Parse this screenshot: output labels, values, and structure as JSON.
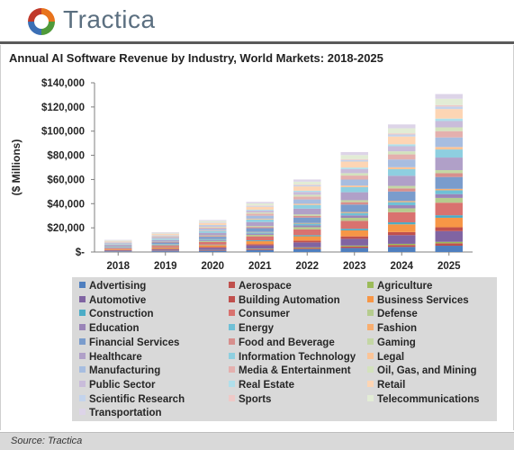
{
  "brand": {
    "name": "Tractica",
    "logo_colors": [
      "#e8731c",
      "#4f9a3a",
      "#3b6fb5",
      "#c0392b"
    ]
  },
  "footer": {
    "source": "Source: Tractica"
  },
  "chart_data": {
    "type": "bar",
    "stacked": true,
    "title": "Annual AI Software Revenue by Industry, World Markets: 2018-2025",
    "xlabel": "",
    "ylabel": "($ Millions)",
    "ylim": [
      0,
      140000
    ],
    "yticks": [
      0,
      20000,
      40000,
      60000,
      80000,
      100000,
      120000,
      140000
    ],
    "ytick_labels": [
      "$-",
      "$20,000",
      "$40,000",
      "$60,000",
      "$80,000",
      "$100,000",
      "$120,000",
      "$140,000"
    ],
    "categories": [
      "2018",
      "2019",
      "2020",
      "2021",
      "2022",
      "2023",
      "2024",
      "2025"
    ],
    "grid": false,
    "legend_position": "bottom",
    "series": [
      {
        "name": "Advertising",
        "color": "#4f7fbf",
        "values": [
          400,
          650,
          1050,
          1650,
          2400,
          3300,
          4200,
          5200
        ]
      },
      {
        "name": "Aerospace",
        "color": "#c0504d",
        "values": [
          150,
          250,
          400,
          650,
          900,
          1250,
          1600,
          2000
        ]
      },
      {
        "name": "Agriculture",
        "color": "#9bbb59",
        "values": [
          100,
          150,
          250,
          400,
          550,
          750,
          950,
          1200
        ]
      },
      {
        "name": "Automotive",
        "color": "#8064a2",
        "values": [
          700,
          1100,
          1800,
          2800,
          4100,
          5600,
          7200,
          8900
        ]
      },
      {
        "name": "Building Automation",
        "color": "#c0504d",
        "values": [
          250,
          400,
          650,
          1000,
          1450,
          2000,
          2550,
          3150
        ]
      },
      {
        "name": "Business Services",
        "color": "#f79646",
        "values": [
          600,
          1000,
          1600,
          2500,
          3600,
          5000,
          6400,
          7900
        ]
      },
      {
        "name": "Construction",
        "color": "#4bacc6",
        "values": [
          150,
          250,
          400,
          650,
          950,
          1300,
          1650,
          2050
        ]
      },
      {
        "name": "Consumer",
        "color": "#d9726f",
        "values": [
          800,
          1300,
          2100,
          3300,
          4800,
          6600,
          8400,
          10400
        ]
      },
      {
        "name": "Defense",
        "color": "#b5cc8e",
        "values": [
          300,
          500,
          800,
          1250,
          1800,
          2500,
          3200,
          3950
        ]
      },
      {
        "name": "Education",
        "color": "#9a84b8",
        "values": [
          250,
          400,
          650,
          1000,
          1450,
          2000,
          2550,
          3150
        ]
      },
      {
        "name": "Energy",
        "color": "#6fc0d6",
        "values": [
          250,
          400,
          650,
          1000,
          1450,
          2000,
          2550,
          3150
        ]
      },
      {
        "name": "Fashion",
        "color": "#f9ae6f",
        "values": [
          100,
          150,
          250,
          400,
          550,
          750,
          950,
          1200
        ]
      },
      {
        "name": "Financial Services",
        "color": "#7a9ccc",
        "values": [
          750,
          1250,
          2000,
          3100,
          4500,
          6200,
          7900,
          9800
        ]
      },
      {
        "name": "Food and Beverage",
        "color": "#d78f8d",
        "values": [
          250,
          400,
          650,
          1000,
          1450,
          2000,
          2550,
          3150
        ]
      },
      {
        "name": "Gaming",
        "color": "#c4d7a5",
        "values": [
          200,
          300,
          500,
          800,
          1150,
          1600,
          2050,
          2550
        ]
      },
      {
        "name": "Healthcare",
        "color": "#b0a0c8",
        "values": [
          800,
          1300,
          2100,
          3300,
          4800,
          6600,
          8400,
          10400
        ]
      },
      {
        "name": "Information Technology",
        "color": "#8ecfe0",
        "values": [
          500,
          850,
          1350,
          2100,
          3050,
          4200,
          5400,
          6700
        ]
      },
      {
        "name": "Legal",
        "color": "#fbc497",
        "values": [
          150,
          250,
          400,
          650,
          950,
          1300,
          1650,
          2050
        ]
      },
      {
        "name": "Manufacturing",
        "color": "#a7bde0",
        "values": [
          600,
          1000,
          1600,
          2500,
          3600,
          5000,
          6400,
          7900
        ]
      },
      {
        "name": "Media & Entertainment",
        "color": "#e4b0ae",
        "values": [
          400,
          650,
          1050,
          1650,
          2400,
          3300,
          4200,
          5200
        ]
      },
      {
        "name": "Oil, Gas, and Mining",
        "color": "#d3e2bd",
        "values": [
          250,
          400,
          650,
          1000,
          1450,
          2000,
          2550,
          3150
        ]
      },
      {
        "name": "Public Sector",
        "color": "#c9bcda",
        "values": [
          400,
          650,
          1050,
          1650,
          2400,
          3300,
          4200,
          5200
        ]
      },
      {
        "name": "Real Estate",
        "color": "#b0dfeb",
        "values": [
          150,
          250,
          400,
          650,
          950,
          1300,
          1650,
          2050
        ]
      },
      {
        "name": "Retail",
        "color": "#fdd5b4",
        "values": [
          600,
          1000,
          1600,
          2500,
          3600,
          5000,
          6400,
          7900
        ]
      },
      {
        "name": "Scientific Research",
        "color": "#c3d3ec",
        "values": [
          150,
          250,
          400,
          650,
          950,
          1300,
          1650,
          2050
        ]
      },
      {
        "name": "Sports",
        "color": "#eec9c7",
        "values": [
          100,
          150,
          250,
          400,
          550,
          750,
          950,
          1200
        ]
      },
      {
        "name": "Telecommunications",
        "color": "#e2ecd5",
        "values": [
          400,
          650,
          1050,
          1650,
          2400,
          3300,
          4200,
          5200
        ]
      },
      {
        "name": "Transportation",
        "color": "#ddd4e8",
        "values": [
          300,
          500,
          800,
          1250,
          1800,
          2500,
          3200,
          3950
        ]
      }
    ]
  }
}
